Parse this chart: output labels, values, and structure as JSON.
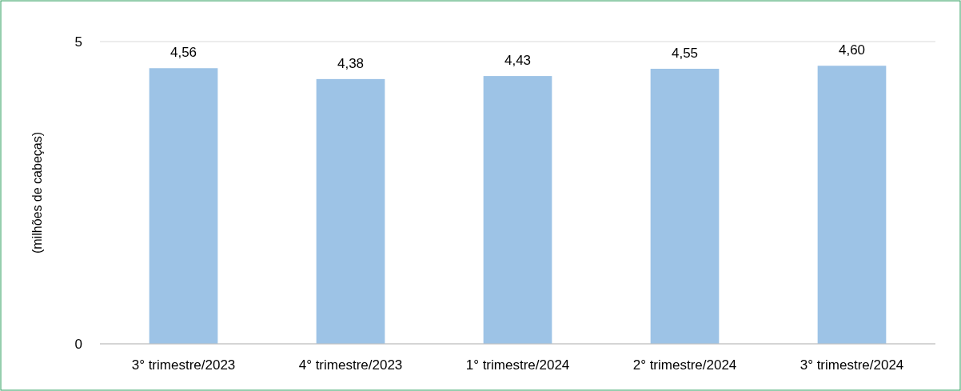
{
  "chart_data": {
    "type": "bar",
    "ylabel": "(milhões de cabeças)",
    "categories": [
      "3° trimestre/2023",
      "4° trimestre/2023",
      "1° trimestre/2024",
      "2° trimestre/2024",
      "3° trimestre/2024"
    ],
    "values": [
      4.56,
      4.38,
      4.43,
      4.55,
      4.6
    ],
    "value_labels": [
      "4,56",
      "4,38",
      "4,43",
      "4,55",
      "4,60"
    ],
    "color": "#9dc3e6",
    "ylim": [
      0,
      5
    ],
    "yticks": [
      0,
      5
    ],
    "grid": "y"
  }
}
